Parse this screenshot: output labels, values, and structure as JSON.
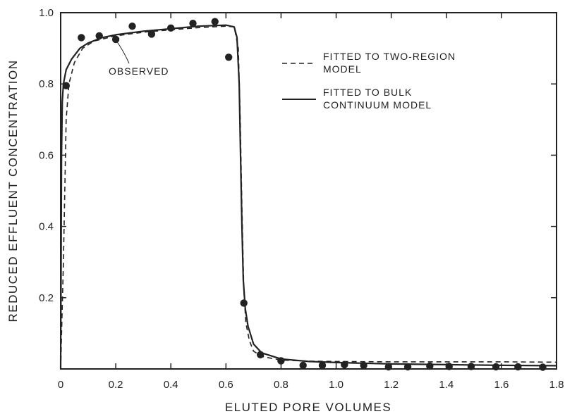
{
  "chart_data": {
    "type": "line",
    "xlabel": "ELUTED PORE VOLUMES",
    "ylabel": "REDUCED EFFLUENT CONCENTRATION",
    "xlim": [
      0,
      1.8
    ],
    "ylim": [
      0,
      1.0
    ],
    "grid": false,
    "legend_placement": "top-right",
    "x_ticks": [
      {
        "value": 0,
        "label": "0"
      },
      {
        "value": 0.2,
        "label": "0.2"
      },
      {
        "value": 0.4,
        "label": "0.4"
      },
      {
        "value": 0.6,
        "label": "0.6"
      },
      {
        "value": 0.8,
        "label": "0.8"
      },
      {
        "value": 1.0,
        "label": "1.0"
      },
      {
        "value": 1.2,
        "label": "1.2"
      },
      {
        "value": 1.4,
        "label": "1.4"
      },
      {
        "value": 1.6,
        "label": "1.6"
      },
      {
        "value": 1.8,
        "label": "1.8"
      }
    ],
    "y_ticks": [
      {
        "value": 0.2,
        "label": "0.2"
      },
      {
        "value": 0.4,
        "label": "0.4"
      },
      {
        "value": 0.6,
        "label": "0.6"
      },
      {
        "value": 0.8,
        "label": "0.8"
      },
      {
        "value": 1.0,
        "label": "1.0"
      }
    ],
    "legend": [
      {
        "style": "dashed",
        "label_lines": [
          "FITTED TO TWO-REGION",
          "MODEL"
        ]
      },
      {
        "style": "solid",
        "label_lines": [
          "FITTED TO BULK",
          "CONTINUUM MODEL"
        ]
      }
    ],
    "annotations": [
      {
        "text": "OBSERVED"
      }
    ],
    "series": [
      {
        "kind": "scatter",
        "points": [
          [
            0.02,
            0.795
          ],
          [
            0.075,
            0.93
          ],
          [
            0.14,
            0.935
          ],
          [
            0.2,
            0.925
          ],
          [
            0.26,
            0.962
          ],
          [
            0.33,
            0.94
          ],
          [
            0.4,
            0.957
          ],
          [
            0.48,
            0.97
          ],
          [
            0.56,
            0.975
          ],
          [
            0.61,
            0.875
          ],
          [
            0.665,
            0.185
          ],
          [
            0.725,
            0.04
          ],
          [
            0.8,
            0.023
          ],
          [
            0.88,
            0.01
          ],
          [
            0.95,
            0.01
          ],
          [
            1.03,
            0.012
          ],
          [
            1.1,
            0.01
          ],
          [
            1.19,
            0.006
          ],
          [
            1.26,
            0.006
          ],
          [
            1.34,
            0.008
          ],
          [
            1.41,
            0.007
          ],
          [
            1.49,
            0.007
          ],
          [
            1.58,
            0.006
          ],
          [
            1.66,
            0.006
          ],
          [
            1.75,
            0.005
          ]
        ]
      },
      {
        "kind": "line",
        "style": "solid",
        "points": [
          [
            0.0,
            0.0
          ],
          [
            0.003,
            0.6
          ],
          [
            0.006,
            0.75
          ],
          [
            0.01,
            0.8
          ],
          [
            0.02,
            0.84
          ],
          [
            0.04,
            0.87
          ],
          [
            0.07,
            0.9
          ],
          [
            0.1,
            0.915
          ],
          [
            0.15,
            0.93
          ],
          [
            0.2,
            0.938
          ],
          [
            0.3,
            0.948
          ],
          [
            0.4,
            0.955
          ],
          [
            0.5,
            0.962
          ],
          [
            0.6,
            0.965
          ],
          [
            0.63,
            0.96
          ],
          [
            0.64,
            0.93
          ],
          [
            0.648,
            0.8
          ],
          [
            0.653,
            0.6
          ],
          [
            0.658,
            0.4
          ],
          [
            0.663,
            0.25
          ],
          [
            0.67,
            0.17
          ],
          [
            0.68,
            0.12
          ],
          [
            0.7,
            0.07
          ],
          [
            0.73,
            0.045
          ],
          [
            0.8,
            0.028
          ],
          [
            0.9,
            0.021
          ],
          [
            1.0,
            0.018
          ],
          [
            1.2,
            0.014
          ],
          [
            1.4,
            0.012
          ],
          [
            1.6,
            0.01
          ],
          [
            1.8,
            0.009
          ]
        ]
      },
      {
        "kind": "line",
        "style": "dashed",
        "points": [
          [
            0.0,
            0.0
          ],
          [
            0.01,
            0.3
          ],
          [
            0.02,
            0.7
          ],
          [
            0.03,
            0.8
          ],
          [
            0.05,
            0.86
          ],
          [
            0.08,
            0.9
          ],
          [
            0.12,
            0.92
          ],
          [
            0.2,
            0.935
          ],
          [
            0.3,
            0.945
          ],
          [
            0.4,
            0.952
          ],
          [
            0.5,
            0.958
          ],
          [
            0.6,
            0.962
          ],
          [
            0.63,
            0.96
          ],
          [
            0.645,
            0.9
          ],
          [
            0.652,
            0.7
          ],
          [
            0.658,
            0.45
          ],
          [
            0.665,
            0.22
          ],
          [
            0.672,
            0.13
          ],
          [
            0.685,
            0.08
          ],
          [
            0.7,
            0.05
          ],
          [
            0.73,
            0.035
          ],
          [
            0.8,
            0.025
          ],
          [
            0.9,
            0.022
          ],
          [
            1.0,
            0.021
          ],
          [
            1.2,
            0.02
          ],
          [
            1.4,
            0.02
          ],
          [
            1.6,
            0.02
          ],
          [
            1.8,
            0.019
          ]
        ]
      }
    ]
  }
}
